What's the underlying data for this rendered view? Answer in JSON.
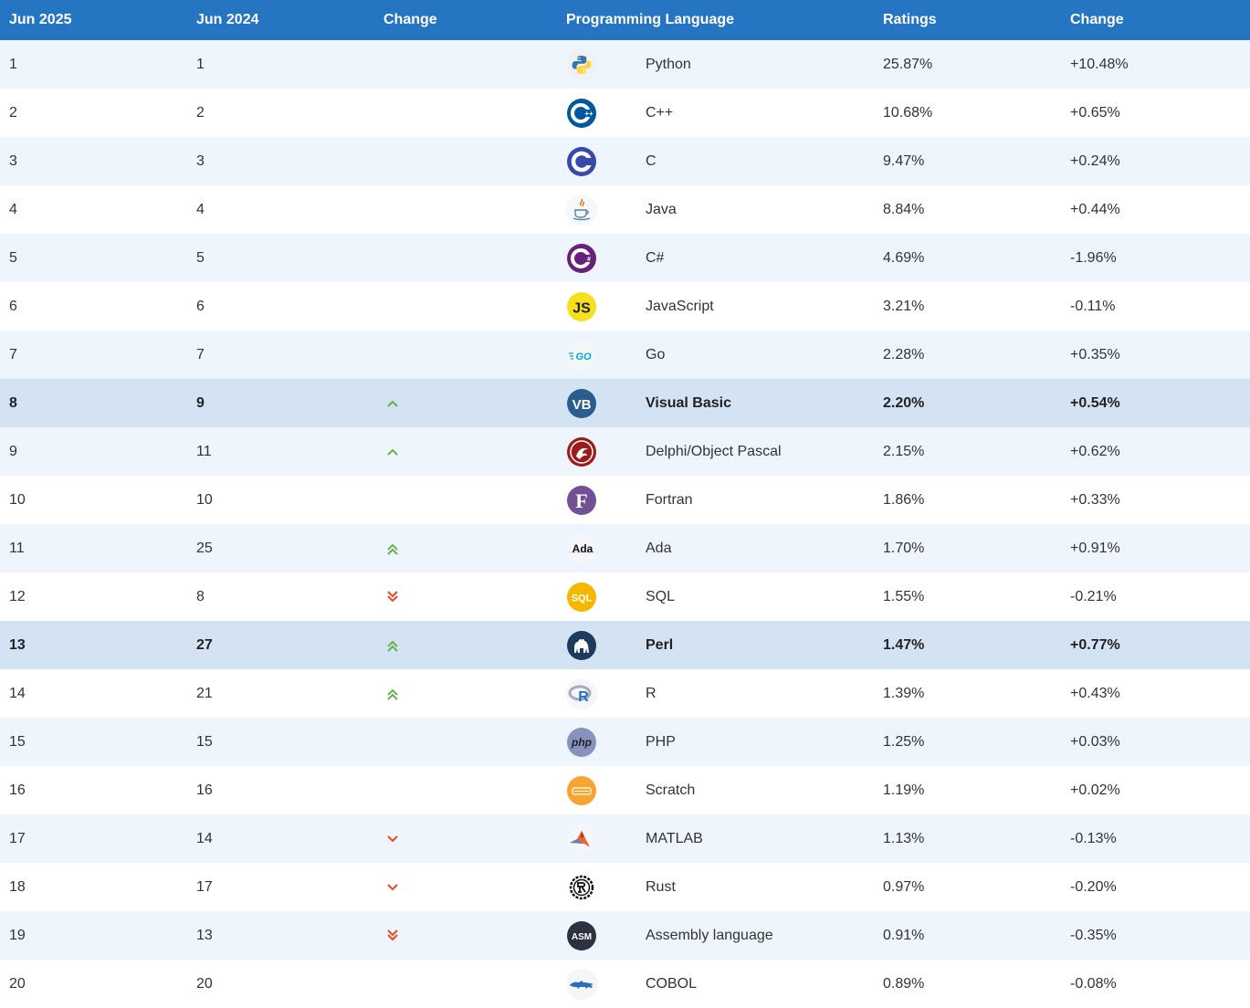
{
  "headers": [
    "Jun 2025",
    "Jun 2024",
    "Change",
    "Programming Language",
    "Ratings",
    "Change"
  ],
  "colors": {
    "header": "#2675c3",
    "up": "#6ab04c",
    "down": "#e84b1f"
  },
  "rows": [
    {
      "now": "1",
      "prev": "1",
      "change": "none",
      "icon": "python-icon",
      "lang": "Python",
      "rating": "25.87%",
      "delta": "+10.48%",
      "highlight": false
    },
    {
      "now": "2",
      "prev": "2",
      "change": "none",
      "icon": "cplusplus-icon",
      "lang": "C++",
      "rating": "10.68%",
      "delta": "+0.65%",
      "highlight": false
    },
    {
      "now": "3",
      "prev": "3",
      "change": "none",
      "icon": "c-icon",
      "lang": "C",
      "rating": "9.47%",
      "delta": "+0.24%",
      "highlight": false
    },
    {
      "now": "4",
      "prev": "4",
      "change": "none",
      "icon": "java-icon",
      "lang": "Java",
      "rating": "8.84%",
      "delta": "+0.44%",
      "highlight": false
    },
    {
      "now": "5",
      "prev": "5",
      "change": "none",
      "icon": "csharp-icon",
      "lang": "C#",
      "rating": "4.69%",
      "delta": "-1.96%",
      "highlight": false
    },
    {
      "now": "6",
      "prev": "6",
      "change": "none",
      "icon": "javascript-icon",
      "lang": "JavaScript",
      "rating": "3.21%",
      "delta": "-0.11%",
      "highlight": false
    },
    {
      "now": "7",
      "prev": "7",
      "change": "none",
      "icon": "go-icon",
      "lang": "Go",
      "rating": "2.28%",
      "delta": "+0.35%",
      "highlight": false
    },
    {
      "now": "8",
      "prev": "9",
      "change": "up",
      "icon": "visual-basic-icon",
      "lang": "Visual Basic",
      "rating": "2.20%",
      "delta": "+0.54%",
      "highlight": true
    },
    {
      "now": "9",
      "prev": "11",
      "change": "up",
      "icon": "delphi-icon",
      "lang": "Delphi/Object Pascal",
      "rating": "2.15%",
      "delta": "+0.62%",
      "highlight": false
    },
    {
      "now": "10",
      "prev": "10",
      "change": "none",
      "icon": "fortran-icon",
      "lang": "Fortran",
      "rating": "1.86%",
      "delta": "+0.33%",
      "highlight": false
    },
    {
      "now": "11",
      "prev": "25",
      "change": "up2",
      "icon": "ada-icon",
      "lang": "Ada",
      "rating": "1.70%",
      "delta": "+0.91%",
      "highlight": false
    },
    {
      "now": "12",
      "prev": "8",
      "change": "down2",
      "icon": "sql-icon",
      "lang": "SQL",
      "rating": "1.55%",
      "delta": "-0.21%",
      "highlight": false
    },
    {
      "now": "13",
      "prev": "27",
      "change": "up2",
      "icon": "perl-icon",
      "lang": "Perl",
      "rating": "1.47%",
      "delta": "+0.77%",
      "highlight": true
    },
    {
      "now": "14",
      "prev": "21",
      "change": "up2",
      "icon": "r-icon",
      "lang": "R",
      "rating": "1.39%",
      "delta": "+0.43%",
      "highlight": false
    },
    {
      "now": "15",
      "prev": "15",
      "change": "none",
      "icon": "php-icon",
      "lang": "PHP",
      "rating": "1.25%",
      "delta": "+0.03%",
      "highlight": false
    },
    {
      "now": "16",
      "prev": "16",
      "change": "none",
      "icon": "scratch-icon",
      "lang": "Scratch",
      "rating": "1.19%",
      "delta": "+0.02%",
      "highlight": false
    },
    {
      "now": "17",
      "prev": "14",
      "change": "down",
      "icon": "matlab-icon",
      "lang": "MATLAB",
      "rating": "1.13%",
      "delta": "-0.13%",
      "highlight": false
    },
    {
      "now": "18",
      "prev": "17",
      "change": "down",
      "icon": "rust-icon",
      "lang": "Rust",
      "rating": "0.97%",
      "delta": "-0.20%",
      "highlight": false
    },
    {
      "now": "19",
      "prev": "13",
      "change": "down2",
      "icon": "assembly-icon",
      "lang": "Assembly language",
      "rating": "0.91%",
      "delta": "-0.35%",
      "highlight": false
    },
    {
      "now": "20",
      "prev": "20",
      "change": "none",
      "icon": "cobol-icon",
      "lang": "COBOL",
      "rating": "0.89%",
      "delta": "-0.08%",
      "highlight": false
    }
  ],
  "icon_text": {
    "javascript-icon": "JS",
    "go-icon": "GO",
    "visual-basic-icon": "VB",
    "fortran-icon": "F",
    "ada-icon": "Ada",
    "sql-icon": "SQL",
    "r-icon": "R",
    "php-icon": "php",
    "assembly-icon": "ASM"
  }
}
